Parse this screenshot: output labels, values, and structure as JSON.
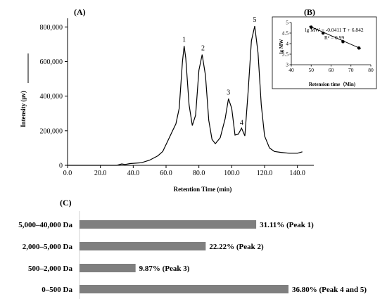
{
  "chart_data": [
    {
      "panel": "(A)",
      "type": "line",
      "xlabel": "Retention Time (min)",
      "ylabel": "Intensity (μv)",
      "xlim": [
        0,
        150
      ],
      "ylim": [
        0,
        850000
      ],
      "xticks": [
        "0.0",
        "20.0",
        "40.0",
        "60.0",
        "80.0",
        "100.0",
        "120.0",
        "140.0"
      ],
      "yticks": [
        "0",
        "200,000",
        "400,000",
        "600,000",
        "800,000"
      ],
      "peak_labels": [
        {
          "label": "1",
          "x": 71,
          "y": 690000
        },
        {
          "label": "2",
          "x": 82.5,
          "y": 640000
        },
        {
          "label": "3",
          "x": 98,
          "y": 385000
        },
        {
          "label": "4",
          "x": 106,
          "y": 210000
        },
        {
          "label": "5",
          "x": 114,
          "y": 805000
        }
      ],
      "series": [
        {
          "x": [
            0,
            30,
            33,
            35,
            38,
            45,
            50,
            55,
            58,
            61,
            64,
            66,
            68,
            70,
            71,
            72,
            74,
            76,
            78,
            80,
            82,
            84,
            86,
            88,
            90,
            93,
            96,
            98,
            100,
            102,
            104,
            106,
            108,
            110,
            112,
            114,
            116,
            118,
            120,
            123,
            126,
            130,
            135,
            140,
            143
          ],
          "y": [
            0,
            0,
            8000,
            5000,
            10000,
            15000,
            30000,
            55000,
            80000,
            140000,
            200000,
            240000,
            330000,
            600000,
            690000,
            620000,
            350000,
            230000,
            290000,
            550000,
            640000,
            520000,
            260000,
            150000,
            125000,
            160000,
            270000,
            385000,
            330000,
            175000,
            180000,
            215000,
            170000,
            430000,
            720000,
            805000,
            650000,
            350000,
            170000,
            100000,
            80000,
            75000,
            70000,
            70000,
            78000
          ]
        }
      ]
    },
    {
      "panel": "(B)",
      "type": "scatter",
      "xlabel": "Retension time（Min)",
      "ylabel": "lg MW",
      "xlim": [
        40,
        80
      ],
      "ylim": [
        3,
        5
      ],
      "xticks": [
        "40",
        "50",
        "60",
        "70",
        "80"
      ],
      "yticks": [
        "3",
        "3.5",
        "4",
        "4.5",
        "5"
      ],
      "equation": "lg MW = -0.0411 T + 6.842",
      "r2": "R² = 0.99",
      "series": [
        {
          "x": [
            50,
            56,
            66,
            74
          ],
          "y": [
            4.78,
            4.5,
            4.09,
            3.79
          ]
        }
      ],
      "fit_line": {
        "x": [
          49,
          75
        ],
        "y": [
          4.83,
          3.76
        ]
      }
    },
    {
      "panel": "(C)",
      "type": "bar",
      "orientation": "horizontal",
      "categories": [
        "5,000–40,000 Da",
        "2,000–5,000 Da",
        "500–2,000 Da",
        "0–500 Da"
      ],
      "values": [
        31.11,
        22.22,
        9.87,
        36.8
      ],
      "labels": [
        "31.11% (Peak 1)",
        "22.22% (Peak 2)",
        "9.87% (Peak 3)",
        "36.80% (Peak 4 and 5)"
      ],
      "colors": {
        "bar": "#7f7f7f"
      }
    }
  ]
}
